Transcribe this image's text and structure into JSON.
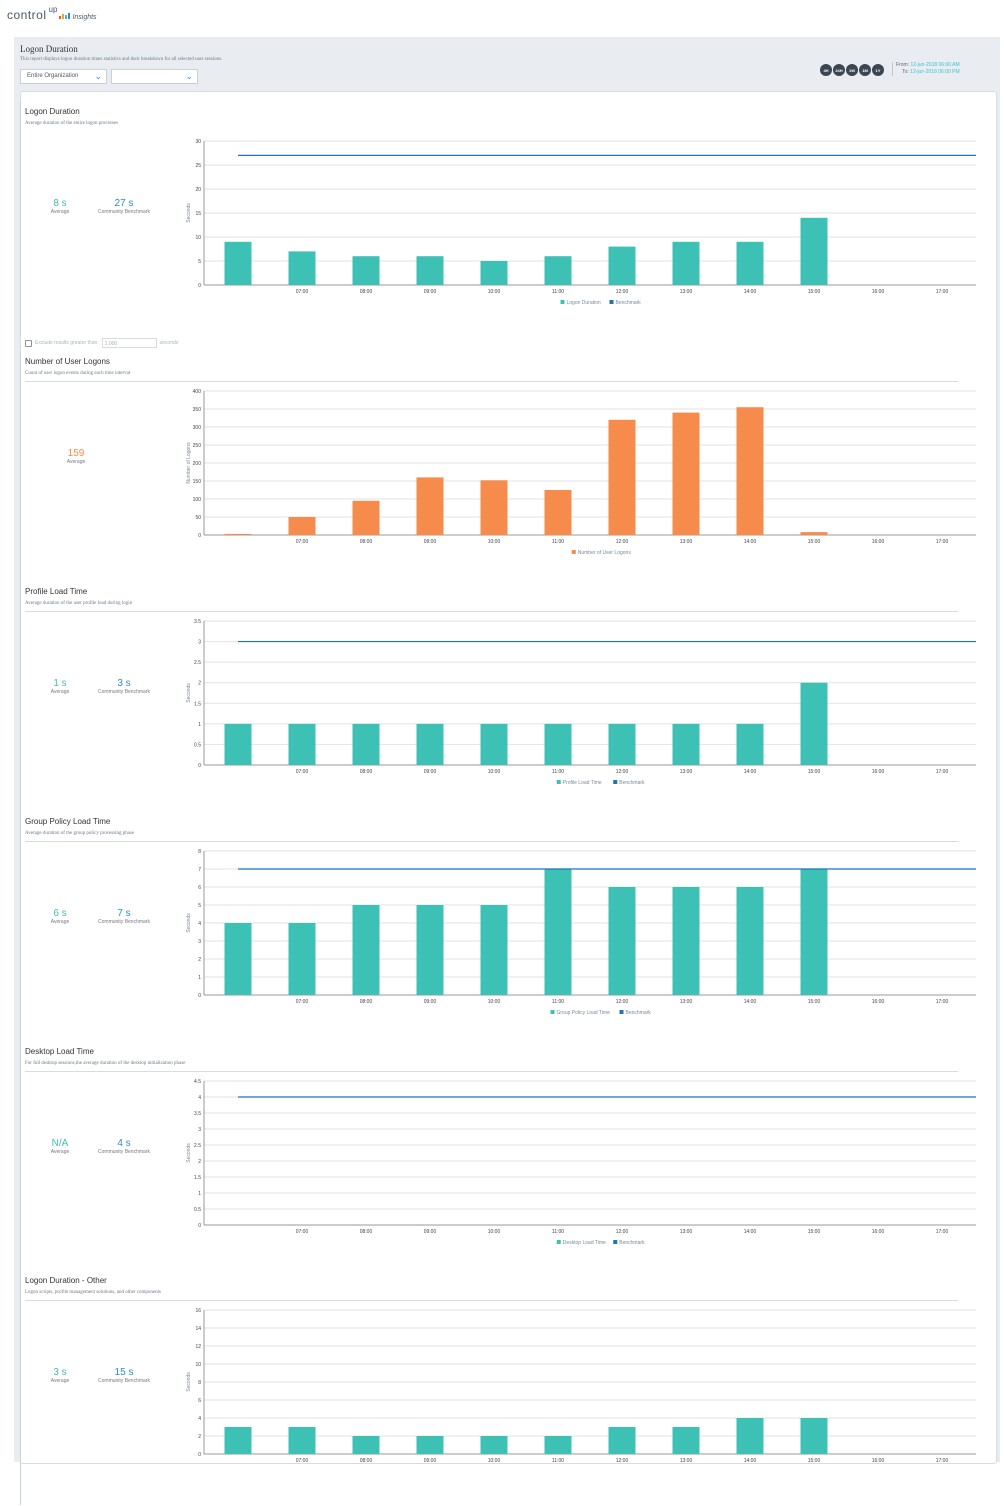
{
  "brand": {
    "name": "control",
    "sup": "up",
    "product": "Insights"
  },
  "report": {
    "title": "Logon Duration",
    "description": "This report displays logon duration times statistics and their breakdown for all selected user sessions.",
    "scope_select": "Entire Organization",
    "second_select": "",
    "range_buttons": [
      "4H",
      "24H",
      "1W",
      "1M",
      "1Y"
    ],
    "from_label": "From:",
    "from": "12-jun-2018 06:00 AM",
    "to_label": "To:",
    "to": "12-jun-2018 06:00 PM"
  },
  "exclude": {
    "label": "Exclude results greater than:",
    "value": "1,000",
    "unit": "seconds",
    "checked": false
  },
  "colors": {
    "teal": "#3cc1b4",
    "orange": "#f68b4b",
    "benchmark": "#1b75bb",
    "accent": "#2a8fd0"
  },
  "sections": [
    {
      "title": "Logon Duration",
      "desc": "Average duration of the entire logon processes",
      "avg": "8 s",
      "avg_label": "Average",
      "bench": "27 s",
      "bench_label": "Community Benchmark"
    },
    {
      "title": "Number of User Logons",
      "desc": "Count of user logon events during each time interval",
      "avg": "159",
      "avg_label": "Average"
    },
    {
      "title": "Profile Load Time",
      "desc": "Average duration of the user profile load during login",
      "avg": "1 s",
      "avg_label": "Average",
      "bench": "3 s",
      "bench_label": "Community Benchmark"
    },
    {
      "title": "Group Policy Load Time",
      "desc": "Average duration of the group policy processing phase",
      "avg": "6 s",
      "avg_label": "Average",
      "bench": "7 s",
      "bench_label": "Community Benchmark"
    },
    {
      "title": "Desktop Load Time",
      "desc": "For full desktop sessions,the average duration of the desktop initialization phase",
      "avg": "N/A",
      "avg_label": "Average",
      "bench": "4 s",
      "bench_label": "Community Benchmark"
    },
    {
      "title": "Logon Duration - Other",
      "desc": "Logon scripts, profile management solutions, and other components",
      "avg": "3 s",
      "avg_label": "Average",
      "bench": "15 s",
      "bench_label": "Community Benchmark"
    }
  ],
  "chart_data": [
    {
      "type": "bar",
      "ylabel": "Seconds",
      "ylim": [
        0,
        30
      ],
      "yticks": [
        0,
        5,
        10,
        15,
        20,
        25,
        30
      ],
      "xticks": [
        "",
        "07:00",
        "08:00",
        "09:00",
        "10:00",
        "11:00",
        "12:00",
        "13:00",
        "14:00",
        "15:00",
        "16:00",
        "17:00"
      ],
      "series": [
        {
          "name": "Logon Duration",
          "color": "#3cc1b4",
          "values": [
            9,
            7,
            6,
            6,
            5,
            6,
            8,
            9,
            9,
            14,
            null,
            null
          ]
        }
      ],
      "benchmark": {
        "name": "Benchmark",
        "value": 27
      },
      "legend": "bottom",
      "grid": true
    },
    {
      "type": "bar",
      "ylabel": "Number of Logons",
      "ylim": [
        0,
        400
      ],
      "yticks": [
        0,
        50,
        100,
        150,
        200,
        250,
        300,
        350,
        400
      ],
      "xticks": [
        "",
        "07:00",
        "08:00",
        "09:00",
        "10:00",
        "11:00",
        "12:00",
        "13:00",
        "14:00",
        "15:00",
        "16:00",
        "17:00"
      ],
      "series": [
        {
          "name": "Number of User Logons",
          "color": "#f68b4b",
          "values": [
            3,
            50,
            95,
            160,
            152,
            125,
            320,
            340,
            355,
            8,
            null,
            null
          ]
        }
      ],
      "legend": "bottom",
      "grid": true
    },
    {
      "type": "bar",
      "ylabel": "Seconds",
      "ylim": [
        0,
        3.5
      ],
      "yticks": [
        0,
        0.5,
        1,
        1.5,
        2,
        2.5,
        3,
        3.5
      ],
      "xticks": [
        "",
        "07:00",
        "08:00",
        "09:00",
        "10:00",
        "11:00",
        "12:00",
        "13:00",
        "14:00",
        "15:00",
        "16:00",
        "17:00"
      ],
      "series": [
        {
          "name": "Profile Load Time",
          "color": "#3cc1b4",
          "values": [
            1,
            1,
            1,
            1,
            1,
            1,
            1,
            1,
            1,
            2,
            null,
            null
          ]
        }
      ],
      "benchmark": {
        "name": "Benchmark",
        "value": 3
      },
      "legend": "bottom",
      "grid": true
    },
    {
      "type": "bar",
      "ylabel": "Seconds",
      "ylim": [
        0,
        8
      ],
      "yticks": [
        0,
        1,
        2,
        3,
        4,
        5,
        6,
        7,
        8
      ],
      "xticks": [
        "",
        "07:00",
        "08:00",
        "09:00",
        "10:00",
        "11:00",
        "12:00",
        "13:00",
        "14:00",
        "15:00",
        "16:00",
        "17:00"
      ],
      "series": [
        {
          "name": "Group Policy Load Time",
          "color": "#3cc1b4",
          "values": [
            4,
            4,
            5,
            5,
            5,
            7,
            6,
            6,
            6,
            7,
            null,
            null
          ]
        }
      ],
      "benchmark": {
        "name": "Benchmark",
        "value": 7
      },
      "legend": "bottom",
      "grid": true
    },
    {
      "type": "bar",
      "ylabel": "Seconds",
      "ylim": [
        0,
        4.5
      ],
      "yticks": [
        0,
        0.5,
        1,
        1.5,
        2,
        2.5,
        3,
        3.5,
        4,
        4.5
      ],
      "xticks": [
        "",
        "07:00",
        "08:00",
        "09:00",
        "10:00",
        "11:00",
        "12:00",
        "13:00",
        "14:00",
        "15:00",
        "16:00",
        "17:00"
      ],
      "series": [
        {
          "name": "Desktop Load Time",
          "color": "#3cc1b4",
          "values": [
            null,
            null,
            null,
            null,
            null,
            null,
            null,
            null,
            null,
            null,
            null,
            null
          ]
        }
      ],
      "benchmark": {
        "name": "Benchmark",
        "value": 4
      },
      "legend": "bottom",
      "grid": true
    },
    {
      "type": "bar",
      "ylabel": "Seconds",
      "ylim": [
        0,
        16
      ],
      "yticks": [
        0,
        2,
        4,
        6,
        8,
        10,
        12,
        14,
        16
      ],
      "xticks": [
        "",
        "07:00",
        "08:00",
        "09:00",
        "10:00",
        "11:00",
        "12:00",
        "13:00",
        "14:00",
        "15:00",
        "16:00",
        "17:00"
      ],
      "series": [
        {
          "name": "Logon Duration - Other",
          "color": "#3cc1b4",
          "values": [
            3,
            3,
            2,
            2,
            2,
            2,
            3,
            3,
            4,
            4,
            null,
            null
          ]
        }
      ],
      "legend": "none",
      "grid": true
    }
  ]
}
